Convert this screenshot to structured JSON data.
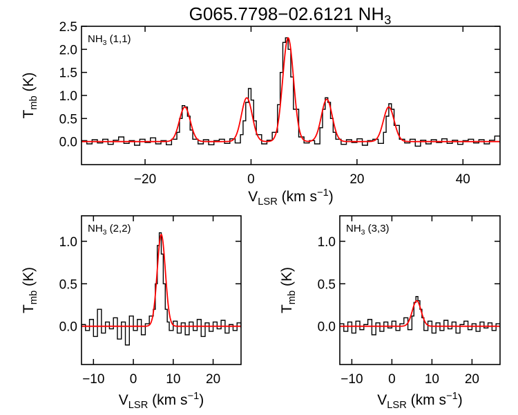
{
  "figure": {
    "title_main": "G065.7798−02.6121 NH",
    "title_sub": "3"
  },
  "chart_data": [
    {
      "type": "line",
      "id": "nh3-11",
      "panel_label_main": "NH",
      "panel_label_sub": "3",
      "panel_label_rest": " (1,1)",
      "xlabel_main": "V",
      "xlabel_sub": "LSR",
      "xlabel_rest": " (km s",
      "xlabel_sup": "−1",
      "xlabel_end": ")",
      "ylabel_main": "T",
      "ylabel_sub": "mb",
      "ylabel_rest": " (K)",
      "xlim": [
        -32,
        47
      ],
      "ylim": [
        -0.5,
        2.5
      ],
      "xticks": [
        -20,
        0,
        20,
        40
      ],
      "xtick_labels": [
        "−20",
        "0",
        "20",
        "40"
      ],
      "yticks": [
        0.0,
        0.5,
        1.0,
        1.5,
        2.0,
        2.5
      ],
      "ytick_labels": [
        "0.0",
        "0.5",
        "1.0",
        "1.5",
        "2.0",
        "2.5"
      ],
      "series": [
        {
          "kind": "observed spectrum (histogram)",
          "color": "#000000",
          "x": [
            -32,
            -31,
            -30,
            -29,
            -28,
            -27,
            -26,
            -25,
            -24,
            -23,
            -22,
            -21,
            -20,
            -19,
            -18,
            -17,
            -16,
            -15,
            -14,
            -13.5,
            -13,
            -12.5,
            -12,
            -11.5,
            -11,
            -10,
            -9,
            -8,
            -7,
            -6,
            -5,
            -4,
            -3,
            -2,
            -1.5,
            -1,
            -0.5,
            0,
            0.5,
            1,
            2,
            3,
            4,
            5,
            5.5,
            6,
            6.5,
            7,
            7.5,
            8,
            9,
            10,
            11,
            12,
            13,
            13.5,
            14,
            14.5,
            15,
            15.5,
            16,
            17,
            18,
            19,
            20,
            21,
            22,
            23,
            24,
            25,
            25.5,
            26,
            26.5,
            27,
            28,
            29,
            30,
            31,
            32,
            33,
            34,
            35,
            36,
            37,
            38,
            39,
            40,
            41,
            42,
            43,
            44,
            45,
            46,
            47
          ],
          "y": [
            0.02,
            -0.05,
            0.04,
            -0.03,
            0.05,
            -0.06,
            0.03,
            0.1,
            -0.04,
            0.02,
            -0.08,
            0.05,
            -0.02,
            0.08,
            -0.05,
            0.02,
            -0.07,
            0.05,
            0.2,
            0.5,
            0.78,
            0.75,
            0.55,
            0.25,
            0.05,
            -0.05,
            0.04,
            -0.07,
            0.02,
            0.05,
            -0.04,
            0.06,
            -0.03,
            0.15,
            0.45,
            0.85,
            1.15,
            0.9,
            0.45,
            0.15,
            -0.05,
            0.03,
            0.2,
            0.8,
            1.5,
            2.15,
            2.25,
            2.0,
            1.4,
            0.7,
            0.1,
            -0.03,
            0.02,
            -0.05,
            0.3,
            0.7,
            0.95,
            0.85,
            0.5,
            0.2,
            0.05,
            -0.06,
            0.04,
            -0.02,
            0.06,
            -0.08,
            0.02,
            0.05,
            -0.04,
            0.2,
            0.55,
            0.82,
            0.7,
            0.35,
            0.05,
            -0.03,
            0.05,
            -0.1,
            0.03,
            -0.05,
            0.04,
            -0.02,
            0.06,
            -0.04,
            0.03,
            -0.06,
            0.02,
            0.05,
            -0.03,
            0.04,
            -0.05,
            0.03,
            0.12,
            -0.04
          ]
        },
        {
          "kind": "gaussian hyperfine fit",
          "color": "#ff0000",
          "components": [
            {
              "center": -12.5,
              "amplitude": 0.75,
              "fwhm": 2.4
            },
            {
              "center": -0.8,
              "amplitude": 0.95,
              "fwhm": 2.4
            },
            {
              "center": 7.0,
              "amplitude": 2.25,
              "fwhm": 2.4
            },
            {
              "center": 14.3,
              "amplitude": 0.92,
              "fwhm": 2.4
            },
            {
              "center": 26.0,
              "amplitude": 0.75,
              "fwhm": 2.4
            }
          ]
        }
      ]
    },
    {
      "type": "line",
      "id": "nh3-22",
      "panel_label_main": "NH",
      "panel_label_sub": "3",
      "panel_label_rest": " (2,2)",
      "xlabel_main": "V",
      "xlabel_sub": "LSR",
      "xlabel_rest": " (km s",
      "xlabel_sup": "−1",
      "xlabel_end": ")",
      "ylabel_main": "T",
      "ylabel_sub": "mb",
      "ylabel_rest": " (K)",
      "xlim": [
        -13,
        27
      ],
      "ylim": [
        -0.45,
        1.3
      ],
      "xticks": [
        -10,
        0,
        10,
        20
      ],
      "xtick_labels": [
        "−10",
        "0",
        "10",
        "20"
      ],
      "yticks": [
        0.0,
        0.5,
        1.0
      ],
      "ytick_labels": [
        "0.0",
        "0.5",
        "1.0"
      ],
      "series": [
        {
          "kind": "observed spectrum (histogram)",
          "color": "#000000",
          "x": [
            -13,
            -12,
            -11,
            -10,
            -9,
            -8,
            -7,
            -6,
            -5,
            -4,
            -3,
            -2,
            -1,
            0,
            1,
            2,
            3,
            4,
            5,
            5.5,
            6,
            6.5,
            7,
            7.5,
            8,
            8.5,
            9,
            10,
            11,
            12,
            13,
            14,
            15,
            16,
            17,
            18,
            19,
            20,
            21,
            22,
            23,
            24,
            25,
            26,
            27
          ],
          "y": [
            0.02,
            -0.05,
            0.08,
            -0.12,
            0.2,
            -0.08,
            0.05,
            -0.03,
            0.1,
            -0.15,
            0.05,
            -0.22,
            0.12,
            -0.05,
            0.08,
            -0.1,
            0.03,
            0.12,
            0.2,
            0.5,
            0.95,
            1.1,
            0.85,
            0.5,
            0.2,
            0.05,
            -0.05,
            0.06,
            -0.08,
            0.04,
            -0.1,
            0.05,
            -0.05,
            0.08,
            -0.12,
            0.04,
            -0.06,
            0.05,
            -0.03,
            0.07,
            -0.08,
            0.02,
            -0.05,
            0.04,
            -0.02
          ]
        },
        {
          "kind": "gaussian fit",
          "color": "#ff0000",
          "components": [
            {
              "center": 7.0,
              "amplitude": 1.08,
              "fwhm": 2.4
            }
          ]
        }
      ]
    },
    {
      "type": "line",
      "id": "nh3-33",
      "panel_label_main": "NH",
      "panel_label_sub": "3",
      "panel_label_rest": " (3,3)",
      "xlabel_main": "V",
      "xlabel_sub": "LSR",
      "xlabel_rest": " (km s",
      "xlabel_sup": "−1",
      "xlabel_end": ")",
      "ylabel_main": "T",
      "ylabel_sub": "mb",
      "ylabel_rest": " (K)",
      "xlim": [
        -13,
        27
      ],
      "ylim": [
        -0.45,
        1.3
      ],
      "xticks": [
        -10,
        0,
        10,
        20
      ],
      "xtick_labels": [
        "−10",
        "0",
        "10",
        "20"
      ],
      "yticks": [
        0.0,
        0.5,
        1.0
      ],
      "ytick_labels": [
        "0.0",
        "0.5",
        "1.0"
      ],
      "series": [
        {
          "kind": "observed spectrum (histogram)",
          "color": "#000000",
          "x": [
            -13,
            -12,
            -11,
            -10,
            -9,
            -8,
            -7,
            -6,
            -5,
            -4,
            -3,
            -2,
            -1,
            0,
            1,
            2,
            3,
            4,
            5,
            5.5,
            6,
            6.5,
            7,
            7.5,
            8,
            9,
            10,
            11,
            12,
            13,
            14,
            15,
            16,
            17,
            18,
            19,
            20,
            21,
            22,
            23,
            24,
            25,
            26,
            27
          ],
          "y": [
            0.03,
            -0.06,
            0.05,
            -0.08,
            0.06,
            -0.04,
            0.02,
            0.08,
            -0.1,
            0.04,
            -0.06,
            0.05,
            -0.02,
            0.06,
            -0.05,
            0.03,
            0.1,
            -0.04,
            0.12,
            0.28,
            0.35,
            0.3,
            0.2,
            0.1,
            -0.05,
            0.06,
            -0.08,
            0.04,
            -0.05,
            0.07,
            -0.03,
            0.05,
            -0.08,
            0.02,
            0.06,
            -0.04,
            0.03,
            -0.06,
            0.05,
            -0.02,
            0.04,
            -0.05,
            0.03,
            -0.02
          ]
        },
        {
          "kind": "gaussian fit",
          "color": "#ff0000",
          "components": [
            {
              "center": 6.2,
              "amplitude": 0.3,
              "fwhm": 2.6
            }
          ]
        }
      ]
    }
  ]
}
